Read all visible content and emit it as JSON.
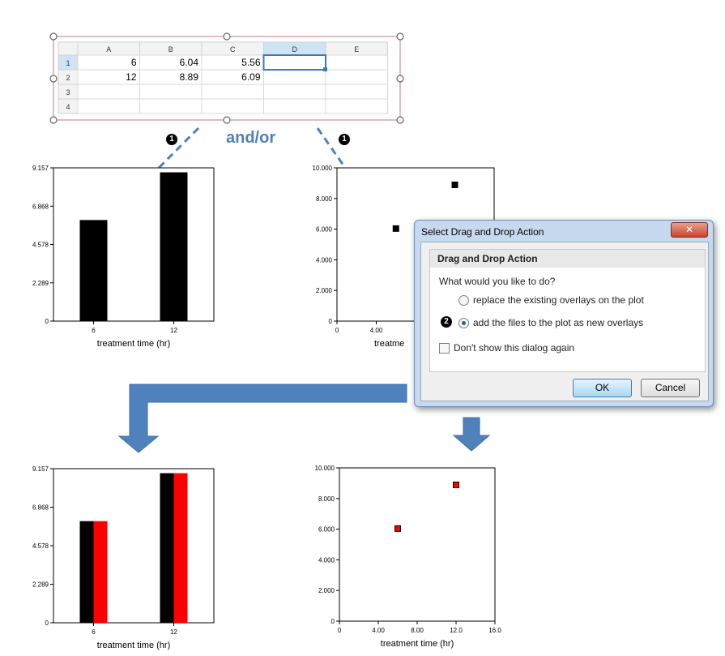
{
  "spreadsheet": {
    "columns": [
      "A",
      "B",
      "C",
      "D",
      "E"
    ],
    "rows": [
      {
        "num": "1",
        "cells": [
          "6",
          "6.04",
          "5.56",
          "",
          ""
        ]
      },
      {
        "num": "2",
        "cells": [
          "12",
          "8.89",
          "6.09",
          "",
          ""
        ]
      },
      {
        "num": "3",
        "cells": [
          "",
          "",
          "",
          "",
          ""
        ]
      },
      {
        "num": "4",
        "cells": [
          "",
          "",
          "",
          "",
          ""
        ]
      }
    ],
    "selected_cell": "D1"
  },
  "annotations": {
    "and_or": "and/or",
    "step1": "1",
    "step2": "2"
  },
  "dialog": {
    "title": "Select Drag and Drop Action",
    "close_symbol": "✕",
    "group_title": "Drag and Drop Action",
    "question": "What would you like to do?",
    "option_replace": "replace the existing overlays on the plot",
    "option_add": "add the files to the plot as new overlays",
    "selected_option": "add",
    "dont_show": "Don't show this dialog again",
    "dont_show_checked": false,
    "ok": "OK",
    "cancel": "Cancel"
  },
  "colors": {
    "arrow_blue": "#4f81bd",
    "bar_black": "#000000",
    "overlay_red": "#ff0000"
  },
  "chart_data": [
    {
      "type": "bar",
      "id": "bar-before",
      "categories": [
        "6",
        "12"
      ],
      "series": [
        {
          "values": [
            6.04,
            8.89
          ],
          "color": "#000000"
        }
      ],
      "xlabel": "treatment time (hr)",
      "yticks": [
        "0",
        "2.289",
        "4.578",
        "6.868",
        "9.157"
      ],
      "ylim": [
        0,
        9.157
      ]
    },
    {
      "type": "scatter",
      "id": "scatter-before",
      "points": [
        [
          6,
          6.04
        ],
        [
          12,
          8.89
        ]
      ],
      "xlabel_visible": "treatme",
      "xticks": [
        "0",
        "4.00"
      ],
      "yticks": [
        "0",
        "2.000",
        "4.000",
        "6.000",
        "8.000",
        "10.000"
      ],
      "xlim": [
        0,
        16
      ],
      "ylim": [
        0,
        10
      ]
    },
    {
      "type": "bar",
      "id": "bar-after",
      "categories": [
        "6",
        "12"
      ],
      "series": [
        {
          "values": [
            6.04,
            8.89
          ],
          "color": "#000000"
        },
        {
          "values": [
            6.04,
            8.89
          ],
          "color": "#ff0000"
        }
      ],
      "xlabel": "treatment time (hr)",
      "yticks": [
        "0",
        "2.289",
        "4.578",
        "6.868",
        "9.157"
      ],
      "ylim": [
        0,
        9.157
      ]
    },
    {
      "type": "scatter",
      "id": "scatter-after",
      "points": [
        [
          6,
          6.04
        ],
        [
          12,
          8.89
        ]
      ],
      "point_color": "#ff0000",
      "xlabel": "treatment time (hr)",
      "xticks": [
        "0",
        "4.00",
        "8.00",
        "12.0",
        "16.0"
      ],
      "yticks": [
        "0",
        "2.000",
        "4.000",
        "6.000",
        "8.000",
        "10.000"
      ],
      "xlim": [
        0,
        16
      ],
      "ylim": [
        0,
        10
      ]
    }
  ]
}
